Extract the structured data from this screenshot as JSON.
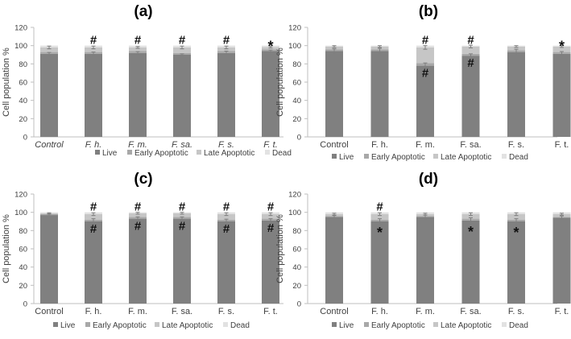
{
  "figure": {
    "colors": {
      "live": "#808080",
      "early": "#a8a8a8",
      "late": "#c6c6c6",
      "dead": "#e2e2e2",
      "axis": "#bfbfbf",
      "text": "#404040",
      "error": "#7f7f7f"
    }
  },
  "chart_data": [
    {
      "panel": "a",
      "type": "bar",
      "stacked": true,
      "title": "(a)",
      "xlabel": "",
      "ylabel": "Cell population %",
      "ylim": [
        0,
        120
      ],
      "yticks": [
        "0",
        "20",
        "40",
        "60",
        "80",
        "100",
        "120"
      ],
      "italic_categories": true,
      "categories": [
        "Control",
        "F. h.",
        "F. m.",
        "F. sa.",
        "F. s.",
        "F. t."
      ],
      "series": [
        {
          "name": "Live",
          "values": [
            91,
            91,
            92,
            90,
            92,
            94
          ],
          "errors": [
            1.5,
            2,
            1.5,
            1,
            2,
            1.2
          ]
        },
        {
          "name": "Early Apoptotic",
          "values": [
            2,
            2,
            2,
            2,
            2,
            2
          ]
        },
        {
          "name": "Late Apoptotic",
          "values": [
            5,
            5,
            4,
            6,
            4,
            2.5
          ],
          "errors": [
            1.5,
            1.5,
            1,
            1.5,
            1.5,
            1
          ]
        },
        {
          "name": "Dead",
          "values": [
            2,
            2,
            2,
            2,
            2,
            1.5
          ]
        }
      ],
      "annotations": [
        {
          "category": "F. h.",
          "symbol": "#",
          "position": "top"
        },
        {
          "category": "F. m.",
          "symbol": "#",
          "position": "top"
        },
        {
          "category": "F. sa.",
          "symbol": "#",
          "position": "top"
        },
        {
          "category": "F. s.",
          "symbol": "#",
          "position": "top"
        },
        {
          "category": "F. t.",
          "symbol": "*",
          "position": "top"
        }
      ],
      "legend": [
        "Live",
        "Early Apoptotic",
        "Late Apoptotic",
        "Dead"
      ],
      "legend_position": "bottom"
    },
    {
      "panel": "b",
      "type": "bar",
      "stacked": true,
      "title": "(b)",
      "xlabel": "",
      "ylabel": "Cell population %",
      "ylim": [
        0,
        120
      ],
      "yticks": [
        "0",
        "20",
        "40",
        "60",
        "80",
        "100",
        "120"
      ],
      "italic_categories": false,
      "categories": [
        "Control",
        "F. h.",
        "F. m.",
        "F. sa.",
        "F. s.",
        "F. t."
      ],
      "series": [
        {
          "name": "Live",
          "values": [
            94,
            94,
            78,
            89,
            93,
            91
          ],
          "errors": [
            2.5,
            3,
            3,
            2,
            3,
            2.5
          ]
        },
        {
          "name": "Early Apoptotic",
          "values": [
            2,
            2,
            3,
            2,
            2,
            2
          ]
        },
        {
          "name": "Late Apoptotic",
          "values": [
            3,
            3,
            17,
            8,
            4,
            6
          ],
          "errors": [
            1,
            1,
            2,
            1.5,
            1,
            1
          ]
        },
        {
          "name": "Dead",
          "values": [
            1,
            1,
            2,
            1,
            1,
            1
          ]
        }
      ],
      "annotations": [
        {
          "category": "F. m.",
          "symbol": "#",
          "position": "top"
        },
        {
          "category": "F. m.",
          "symbol": "#",
          "position": "inside"
        },
        {
          "category": "F. sa.",
          "symbol": "#",
          "position": "top"
        },
        {
          "category": "F. sa.",
          "symbol": "#",
          "position": "inside"
        },
        {
          "category": "F. t.",
          "symbol": "*",
          "position": "top"
        }
      ],
      "legend": [
        "Live",
        "Early Apoptotic",
        "Late Apoptotic",
        "Dead"
      ],
      "legend_position": "bottom"
    },
    {
      "panel": "c",
      "type": "bar",
      "stacked": true,
      "title": "(c)",
      "xlabel": "",
      "ylabel": "Cell population %",
      "ylim": [
        0,
        120
      ],
      "yticks": [
        "0",
        "20",
        "40",
        "60",
        "80",
        "100",
        "120"
      ],
      "italic_categories": false,
      "categories": [
        "Control",
        "F. h.",
        "F. m.",
        "F. sa.",
        "F. s.",
        "F. t."
      ],
      "series": [
        {
          "name": "Live",
          "values": [
            97,
            90,
            93,
            93,
            90,
            91
          ],
          "errors": [
            1,
            3,
            2,
            2,
            2.5,
            2
          ]
        },
        {
          "name": "Early Apoptotic",
          "values": [
            1,
            2,
            2,
            2,
            2,
            2
          ]
        },
        {
          "name": "Late Apoptotic",
          "values": [
            1,
            6,
            4,
            4,
            6,
            5
          ],
          "errors": [
            0.5,
            1.5,
            1,
            1,
            1.5,
            1.5
          ]
        },
        {
          "name": "Dead",
          "values": [
            1,
            2,
            1,
            1,
            2,
            2
          ]
        }
      ],
      "annotations": [
        {
          "category": "F. h.",
          "symbol": "#",
          "position": "top"
        },
        {
          "category": "F. h.",
          "symbol": "#",
          "position": "inside"
        },
        {
          "category": "F. m.",
          "symbol": "#",
          "position": "top"
        },
        {
          "category": "F. m.",
          "symbol": "#",
          "position": "inside"
        },
        {
          "category": "F. sa.",
          "symbol": "#",
          "position": "top"
        },
        {
          "category": "F. sa.",
          "symbol": "#",
          "position": "inside"
        },
        {
          "category": "F. s.",
          "symbol": "#",
          "position": "top"
        },
        {
          "category": "F. s.",
          "symbol": "#",
          "position": "inside"
        },
        {
          "category": "F. t.",
          "symbol": "#",
          "position": "top"
        },
        {
          "category": "F. t.",
          "symbol": "#",
          "position": "inside"
        }
      ],
      "legend": [
        "Live",
        "Early Apoptotic",
        "Late Apoptotic",
        "Dead"
      ],
      "legend_position": "bottom"
    },
    {
      "panel": "d",
      "type": "bar",
      "stacked": true,
      "title": "(d)",
      "xlabel": "",
      "ylabel": "Cell population %",
      "ylim": [
        0,
        120
      ],
      "yticks": [
        "0",
        "20",
        "40",
        "60",
        "80",
        "100",
        "120"
      ],
      "italic_categories": false,
      "categories": [
        "Control",
        "F. h.",
        "F. m.",
        "F. sa.",
        "F. s.",
        "F. t."
      ],
      "series": [
        {
          "name": "Live",
          "values": [
            95,
            90,
            95,
            91,
            90,
            94
          ],
          "errors": [
            1.5,
            3,
            2,
            3,
            3,
            2
          ]
        },
        {
          "name": "Early Apoptotic",
          "values": [
            1,
            2,
            1,
            2,
            2,
            1
          ]
        },
        {
          "name": "Late Apoptotic",
          "values": [
            2,
            6,
            2,
            5,
            6,
            3
          ],
          "errors": [
            1,
            1.5,
            1,
            1.5,
            1.5,
            1
          ]
        },
        {
          "name": "Dead",
          "values": [
            2,
            2,
            2,
            2,
            2,
            2
          ]
        }
      ],
      "annotations": [
        {
          "category": "F. h.",
          "symbol": "#",
          "position": "top"
        },
        {
          "category": "F. h.",
          "symbol": "*",
          "position": "inside"
        },
        {
          "category": "F. sa.",
          "symbol": "*",
          "position": "inside"
        },
        {
          "category": "F. s.",
          "symbol": "*",
          "position": "inside"
        }
      ],
      "legend": [
        "Live",
        "Early Apoptotic",
        "Late Apoptotic",
        "Dead"
      ],
      "legend_position": "bottom"
    }
  ]
}
